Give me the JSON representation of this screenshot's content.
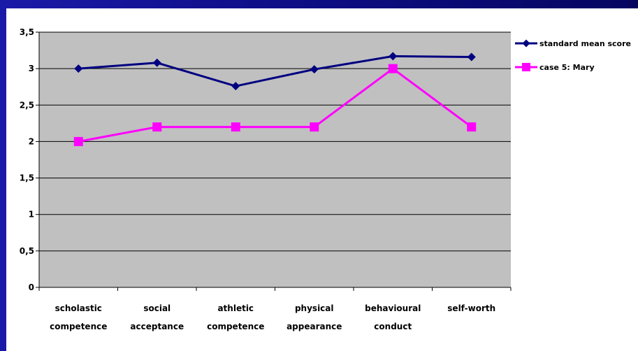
{
  "chart_data": {
    "type": "line",
    "categories": [
      [
        "scholastic",
        "competence"
      ],
      [
        "social",
        "acceptance"
      ],
      [
        "athletic",
        "competence"
      ],
      [
        "physical",
        "appearance"
      ],
      [
        "behavioural",
        "conduct"
      ],
      [
        "self-worth"
      ]
    ],
    "y_ticks": [
      "0",
      "0,5",
      "1",
      "1,5",
      "2",
      "2,5",
      "3",
      "3,5"
    ],
    "ylim": [
      0,
      3.5
    ],
    "grid": true,
    "plot_background": "#c0c0c0",
    "legend_position": "right",
    "series": [
      {
        "name": "standard mean score",
        "values": [
          3.0,
          3.08,
          2.76,
          2.99,
          3.17,
          3.16
        ],
        "color": "#000080",
        "marker": "diamond"
      },
      {
        "name": "case 5: Mary",
        "values": [
          2.0,
          2.2,
          2.2,
          2.2,
          3.0,
          2.2
        ],
        "color": "#ff00ff",
        "marker": "square"
      }
    ]
  },
  "colors": {
    "slide_background": "#0f0f8a",
    "panel_background": "#ffffff"
  }
}
